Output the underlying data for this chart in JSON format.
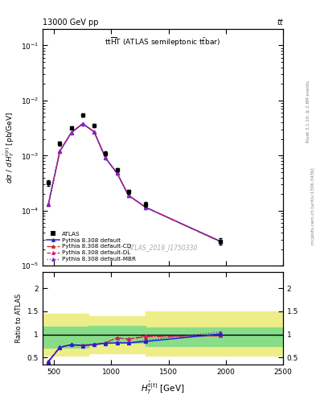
{
  "title_top": "13000 GeV pp",
  "title_right": "tt",
  "watermark": "ATLAS_2019_I1750330",
  "rivet_label": "Rivet 3.1.10; ≥ 2.8M events",
  "arxiv_label": "mcplots.cern.ch [arXiv:1306.3436]",
  "ylabel_ratio": "Ratio to ATLAS",
  "xlim": [
    400,
    2500
  ],
  "ylim_main": [
    1e-05,
    0.2
  ],
  "ylim_ratio": [
    0.35,
    2.35
  ],
  "atlas_x": [
    450,
    550,
    650,
    750,
    850,
    950,
    1050,
    1150,
    1300,
    1950
  ],
  "atlas_y": [
    0.00032,
    0.00165,
    0.00315,
    0.0055,
    0.0035,
    0.0011,
    0.00055,
    0.00022,
    0.00013,
    2.8e-05
  ],
  "atlas_yerr": [
    4e-05,
    0.00012,
    0.0002,
    0.00035,
    0.00022,
    8e-05,
    4e-05,
    1.8e-05,
    1.2e-05,
    4e-06
  ],
  "mc_x": [
    450,
    550,
    650,
    750,
    850,
    950,
    1050,
    1150,
    1300,
    1950
  ],
  "pythia_default_y": [
    0.00013,
    0.0012,
    0.0026,
    0.0038,
    0.0027,
    0.0009,
    0.00048,
    0.00019,
    0.000115,
    2.8e-05
  ],
  "pythia_cd_y": [
    0.00013,
    0.0012,
    0.0026,
    0.0038,
    0.0027,
    0.0009,
    0.00048,
    0.00019,
    0.000115,
    2.75e-05
  ],
  "pythia_dl_y": [
    0.00013,
    0.0012,
    0.0026,
    0.0038,
    0.0027,
    0.0009,
    0.00048,
    0.00019,
    0.000115,
    2.75e-05
  ],
  "pythia_mbr_y": [
    0.00013,
    0.0012,
    0.0026,
    0.0038,
    0.0027,
    0.0009,
    0.00048,
    0.00019,
    0.000115,
    2.8e-05
  ],
  "ratio_default": [
    0.41,
    0.72,
    0.78,
    0.76,
    0.78,
    0.81,
    0.82,
    0.82,
    0.85,
    1.01
  ],
  "ratio_cd": [
    0.42,
    0.73,
    0.78,
    0.77,
    0.79,
    0.82,
    0.93,
    0.9,
    0.95,
    0.97
  ],
  "ratio_dl": [
    0.42,
    0.73,
    0.78,
    0.77,
    0.79,
    0.82,
    0.93,
    0.9,
    0.97,
    0.97
  ],
  "ratio_mbr": [
    0.41,
    0.72,
    0.78,
    0.76,
    0.78,
    0.81,
    0.82,
    0.82,
    0.88,
    1.05
  ],
  "ratio_yerr_default": [
    0.01,
    0.01,
    0.01,
    0.01,
    0.01,
    0.01,
    0.01,
    0.01,
    0.015,
    0.02
  ],
  "bands": [
    {
      "xlo": 400,
      "xhi": 800,
      "ylo_y": 0.55,
      "yhi_y": 1.45,
      "ylo_g": 0.72,
      "yhi_g": 1.17
    },
    {
      "xlo": 800,
      "xhi": 1300,
      "ylo_y": 0.6,
      "yhi_y": 1.4,
      "ylo_g": 0.82,
      "yhi_g": 1.18
    },
    {
      "xlo": 1300,
      "xhi": 2500,
      "ylo_y": 0.55,
      "yhi_y": 1.5,
      "ylo_g": 0.75,
      "yhi_g": 1.15
    }
  ],
  "color_default": "#2222cc",
  "color_cd": "#cc2222",
  "color_dl": "#cc2266",
  "color_mbr": "#8822cc",
  "color_atlas": "black",
  "color_yellow": "#eeee88",
  "color_green": "#88dd88"
}
